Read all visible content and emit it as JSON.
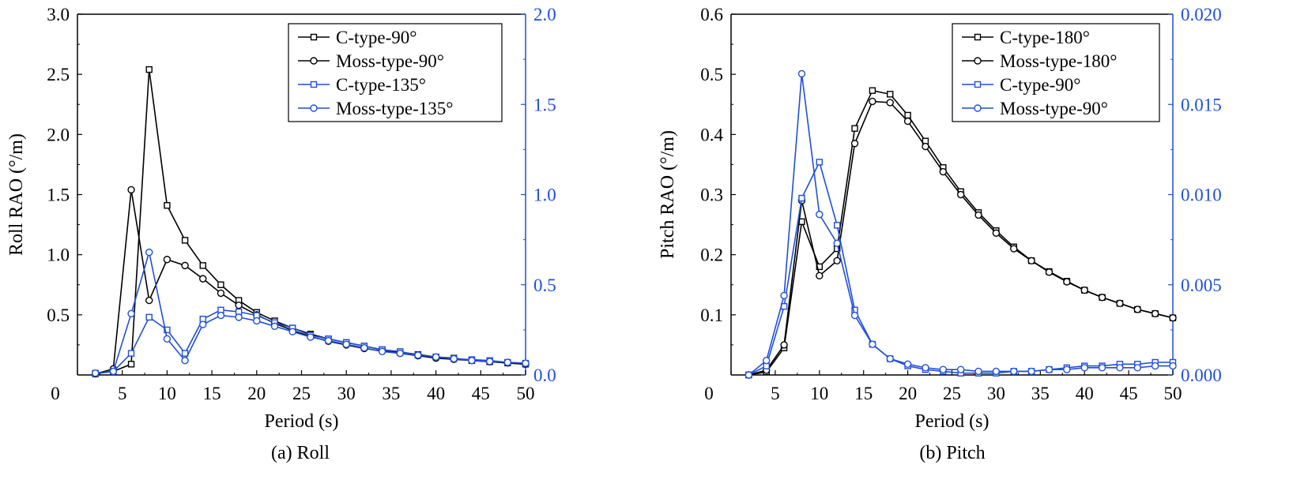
{
  "colors": {
    "black_series": "#000000",
    "blue_series": "#1f4fd8",
    "axis": "#000000"
  },
  "chart_data": [
    {
      "type": "line",
      "caption": "(a) Roll",
      "xlabel": "Period (s)",
      "ylabel": "Roll RAO (°/m)",
      "xlim": [
        0,
        50
      ],
      "ylim": [
        0,
        3.0
      ],
      "ylim_right": [
        0,
        2.0
      ],
      "x_ticks": [
        "0",
        "5",
        "10",
        "15",
        "20",
        "25",
        "30",
        "35",
        "40",
        "45",
        "50"
      ],
      "y_ticks": [
        "0.5",
        "1.0",
        "1.5",
        "2.0",
        "2.5",
        "3.0"
      ],
      "y_ticks_right": [
        "0.0",
        "0.5",
        "1.0",
        "1.5",
        "2.0"
      ],
      "legend_position": "top-right",
      "series": [
        {
          "name": "C-type-90°",
          "axis": "left",
          "color": "black",
          "marker": "square",
          "x": [
            2,
            4,
            6,
            8,
            10,
            12,
            14,
            16,
            18,
            20,
            22,
            24,
            26,
            28,
            30,
            32,
            34,
            36,
            38,
            40,
            42,
            44,
            46,
            48,
            50
          ],
          "y": [
            0.01,
            0.03,
            0.09,
            2.54,
            1.41,
            1.12,
            0.91,
            0.75,
            0.62,
            0.52,
            0.45,
            0.39,
            0.34,
            0.3,
            0.27,
            0.24,
            0.21,
            0.19,
            0.17,
            0.15,
            0.14,
            0.12,
            0.11,
            0.1,
            0.09
          ]
        },
        {
          "name": "Moss-type-90°",
          "axis": "left",
          "color": "black",
          "marker": "circle",
          "x": [
            2,
            4,
            6,
            8,
            10,
            12,
            14,
            16,
            18,
            20,
            22,
            24,
            26,
            28,
            30,
            32,
            34,
            36,
            38,
            40,
            42,
            44,
            46,
            48,
            50
          ],
          "y": [
            0.01,
            0.05,
            1.54,
            0.62,
            0.96,
            0.91,
            0.8,
            0.68,
            0.58,
            0.5,
            0.43,
            0.37,
            0.32,
            0.28,
            0.25,
            0.22,
            0.2,
            0.18,
            0.16,
            0.14,
            0.13,
            0.12,
            0.11,
            0.1,
            0.09
          ]
        },
        {
          "name": "C-type-135°",
          "axis": "right",
          "color": "blue",
          "marker": "square",
          "x": [
            2,
            4,
            6,
            8,
            10,
            12,
            14,
            16,
            18,
            20,
            22,
            24,
            26,
            28,
            30,
            32,
            34,
            36,
            38,
            40,
            42,
            44,
            46,
            48,
            50
          ],
          "y": [
            0.01,
            0.02,
            0.12,
            0.32,
            0.25,
            0.12,
            0.31,
            0.36,
            0.35,
            0.33,
            0.29,
            0.26,
            0.22,
            0.2,
            0.18,
            0.16,
            0.14,
            0.13,
            0.11,
            0.1,
            0.09,
            0.085,
            0.08,
            0.07,
            0.065
          ]
        },
        {
          "name": "Moss-type-135°",
          "axis": "right",
          "color": "blue",
          "marker": "circle",
          "x": [
            2,
            4,
            6,
            8,
            10,
            12,
            14,
            16,
            18,
            20,
            22,
            24,
            26,
            28,
            30,
            32,
            34,
            36,
            38,
            40,
            42,
            44,
            46,
            48,
            50
          ],
          "y": [
            0.01,
            0.02,
            0.34,
            0.68,
            0.2,
            0.08,
            0.28,
            0.33,
            0.32,
            0.3,
            0.27,
            0.24,
            0.21,
            0.19,
            0.17,
            0.15,
            0.13,
            0.12,
            0.11,
            0.1,
            0.09,
            0.08,
            0.075,
            0.07,
            0.065
          ]
        }
      ]
    },
    {
      "type": "line",
      "caption": "(b) Pitch",
      "xlabel": "Period (s)",
      "ylabel": "Pitch RAO (°/m)",
      "xlim": [
        0,
        50
      ],
      "ylim": [
        0,
        0.6
      ],
      "ylim_right": [
        0,
        0.02
      ],
      "x_ticks": [
        "0",
        "5",
        "10",
        "15",
        "20",
        "25",
        "30",
        "35",
        "40",
        "45",
        "50"
      ],
      "y_ticks": [
        "0.1",
        "0.2",
        "0.3",
        "0.4",
        "0.5",
        "0.6"
      ],
      "y_ticks_right": [
        "0.000",
        "0.005",
        "0.010",
        "0.015",
        "0.020"
      ],
      "legend_position": "top-right",
      "series": [
        {
          "name": "C-type-180°",
          "axis": "left",
          "color": "black",
          "marker": "square",
          "x": [
            2,
            4,
            6,
            8,
            10,
            12,
            14,
            16,
            18,
            20,
            22,
            24,
            26,
            28,
            30,
            32,
            34,
            36,
            38,
            40,
            42,
            44,
            46,
            48,
            50
          ],
          "y": [
            0.0,
            0.005,
            0.045,
            0.255,
            0.18,
            0.21,
            0.41,
            0.473,
            0.467,
            0.432,
            0.389,
            0.345,
            0.305,
            0.27,
            0.24,
            0.213,
            0.19,
            0.172,
            0.156,
            0.141,
            0.129,
            0.119,
            0.109,
            0.102,
            0.095
          ]
        },
        {
          "name": "Moss-type-180°",
          "axis": "left",
          "color": "black",
          "marker": "circle",
          "x": [
            2,
            4,
            6,
            8,
            10,
            12,
            14,
            16,
            18,
            20,
            22,
            24,
            26,
            28,
            30,
            32,
            34,
            36,
            38,
            40,
            42,
            44,
            46,
            48,
            50
          ],
          "y": [
            0.0,
            0.008,
            0.05,
            0.29,
            0.165,
            0.19,
            0.385,
            0.455,
            0.453,
            0.422,
            0.38,
            0.338,
            0.3,
            0.266,
            0.236,
            0.21,
            0.19,
            0.171,
            0.155,
            0.141,
            0.129,
            0.119,
            0.109,
            0.102,
            0.095
          ]
        },
        {
          "name": "C-type-90°",
          "axis": "right",
          "color": "blue",
          "marker": "square",
          "x": [
            2,
            4,
            6,
            8,
            10,
            12,
            14,
            16,
            18,
            20,
            22,
            24,
            26,
            28,
            30,
            32,
            34,
            36,
            38,
            40,
            42,
            44,
            46,
            48,
            50
          ],
          "y": [
            0.0,
            0.0005,
            0.0038,
            0.0098,
            0.0118,
            0.0083,
            0.0036,
            0.0017,
            0.0009,
            0.0005,
            0.0003,
            0.0002,
            0.0001,
            0.0001,
            0.0001,
            0.0002,
            0.0002,
            0.0003,
            0.0004,
            0.0005,
            0.0005,
            0.0006,
            0.0006,
            0.0007,
            0.0007
          ]
        },
        {
          "name": "Moss-type-90°",
          "axis": "right",
          "color": "blue",
          "marker": "circle",
          "x": [
            2,
            4,
            6,
            8,
            10,
            12,
            14,
            16,
            18,
            20,
            22,
            24,
            26,
            28,
            30,
            32,
            34,
            36,
            38,
            40,
            42,
            44,
            46,
            48,
            50
          ],
          "y": [
            0.0,
            0.0008,
            0.0044,
            0.0167,
            0.0089,
            0.0073,
            0.0033,
            0.0017,
            0.0009,
            0.0006,
            0.0004,
            0.0003,
            0.0003,
            0.0002,
            0.0002,
            0.0002,
            0.0002,
            0.0003,
            0.0003,
            0.0004,
            0.0004,
            0.0004,
            0.0004,
            0.0005,
            0.0005
          ]
        }
      ]
    }
  ]
}
